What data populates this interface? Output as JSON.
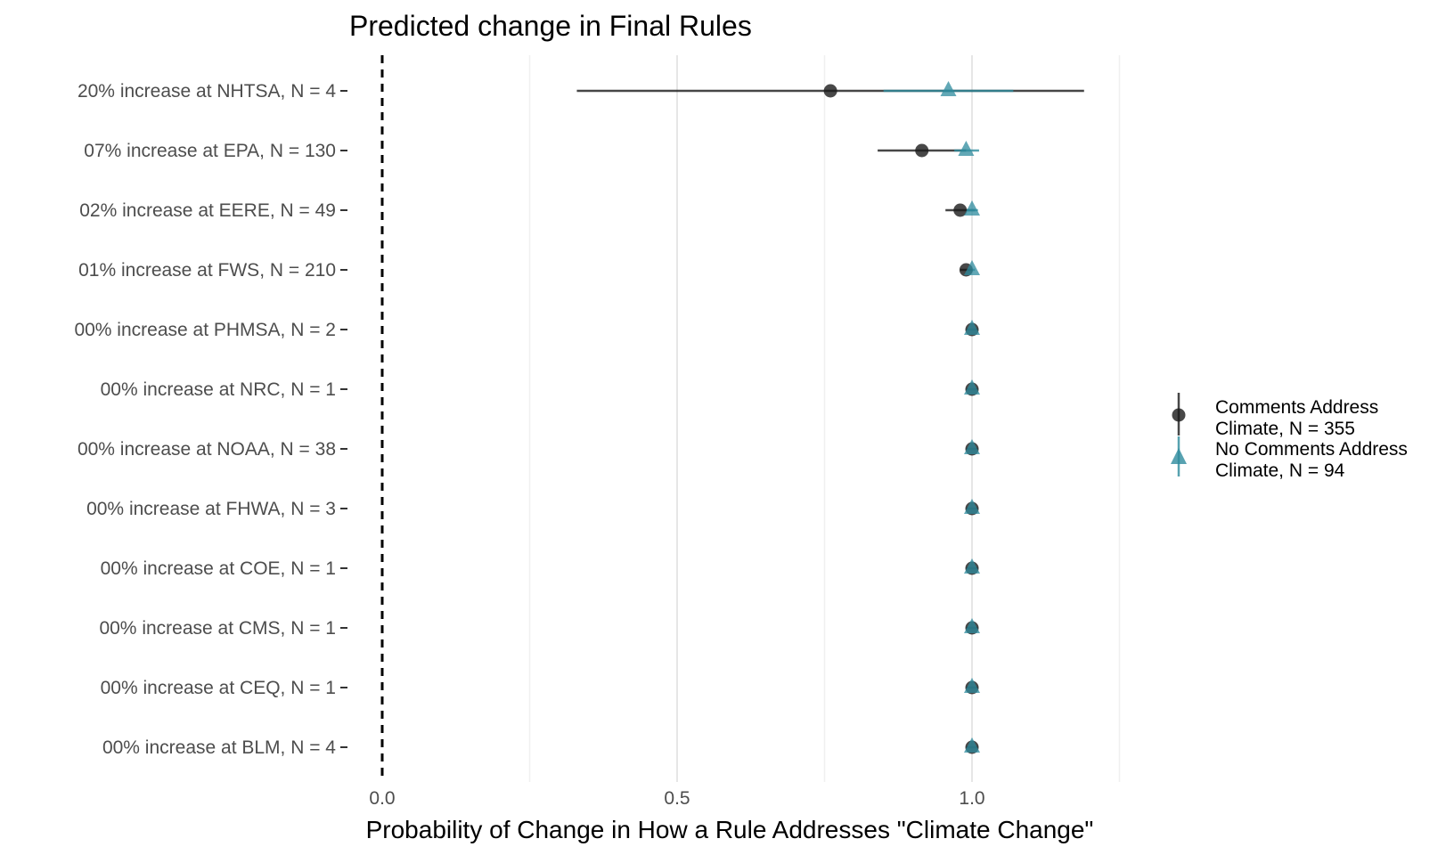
{
  "chart_data": {
    "type": "scatter",
    "title": "Predicted change in Final Rules",
    "xlabel": "Probability of Change in How a Rule Addresses \"Climate Change\"",
    "ylabel": "",
    "xlim": [
      0,
      1.25
    ],
    "x_ticks": [
      "0.0",
      "0.5",
      "1.0"
    ],
    "x_tick_values": [
      0,
      0.5,
      1.0
    ],
    "grid": true,
    "legend_position": "right",
    "reference_line": 0,
    "categories": [
      "20% increase at NHTSA, N = 4",
      "07% increase at EPA, N = 130",
      "02% increase at EERE, N = 49",
      "01% increase at FWS, N = 210",
      "00% increase at PHMSA, N = 2",
      "00% increase at NRC, N = 1",
      "00% increase at NOAA, N = 38",
      "00% increase at FHWA, N = 3",
      "00% increase at COE, N = 1",
      "00% increase at CMS, N = 1",
      "00% increase at CEQ, N = 1",
      "00% increase at BLM, N = 4"
    ],
    "series": [
      {
        "name": "Comments Address Climate, N = 355",
        "marker": "circle",
        "color": "#1a1a1a",
        "values": [
          0.76,
          0.915,
          0.98,
          0.99,
          1.0,
          1.0,
          1.0,
          1.0,
          1.0,
          1.0,
          1.0,
          1.0
        ],
        "lower": [
          0.33,
          0.84,
          0.955,
          0.98,
          1.0,
          1.0,
          1.0,
          1.0,
          1.0,
          1.0,
          1.0,
          1.0
        ],
        "upper": [
          1.19,
          0.99,
          1.005,
          1.0,
          1.0,
          1.0,
          1.0,
          1.0,
          1.0,
          1.0,
          1.0,
          1.0
        ]
      },
      {
        "name": "No Comments Address Climate, N = 94",
        "marker": "triangle",
        "color": "#2e8b9d",
        "values": [
          0.96,
          0.99,
          1.0,
          1.0,
          1.0,
          1.0,
          1.0,
          1.0,
          1.0,
          1.0,
          1.0,
          1.0
        ],
        "lower": [
          0.85,
          0.97,
          0.99,
          0.995,
          0.99,
          0.99,
          0.99,
          0.99,
          0.99,
          0.99,
          0.99,
          0.99
        ],
        "upper": [
          1.07,
          1.012,
          1.01,
          1.005,
          1.01,
          1.01,
          1.01,
          1.01,
          1.01,
          1.01,
          1.01,
          1.01
        ]
      }
    ],
    "legend": [
      {
        "line1": "Comments Address",
        "line2": "Climate, N = 355"
      },
      {
        "line1": "No Comments Address",
        "line2": "Climate, N = 94"
      }
    ]
  }
}
